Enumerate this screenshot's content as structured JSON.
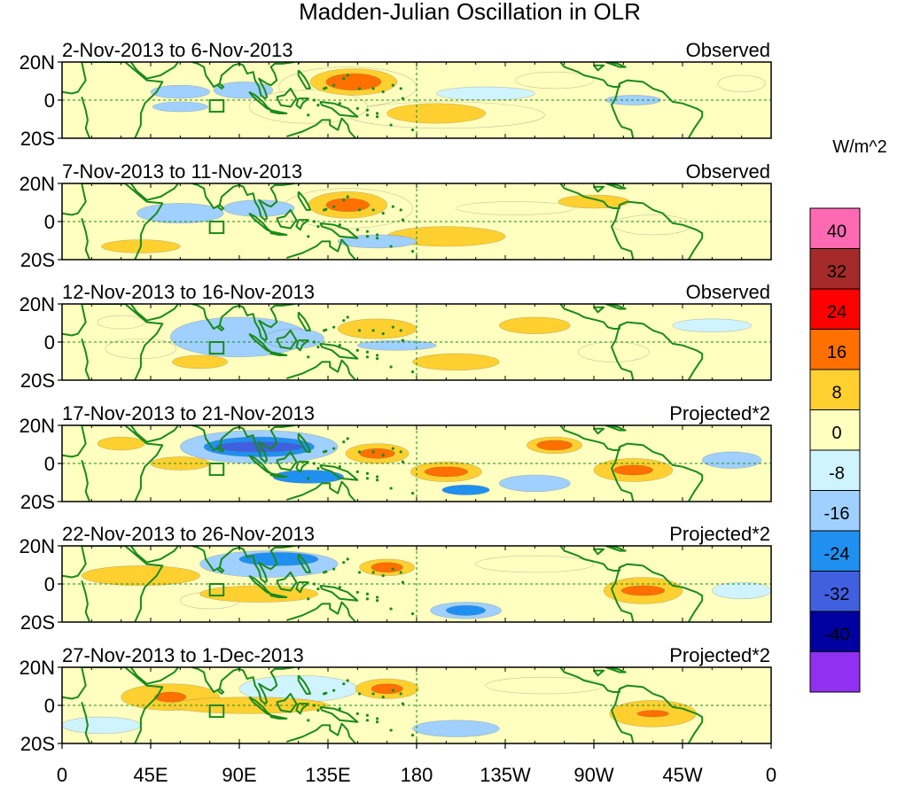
{
  "chart_data": {
    "type": "heatmap",
    "title": "Madden-Julian Oscillation in OLR",
    "colorbar": {
      "label": "W/m^2",
      "tick_labels": [
        "40",
        "32",
        "24",
        "16",
        "8",
        "0",
        "-8",
        "-16",
        "-24",
        "-32",
        "-40"
      ],
      "colors_top_to_bottom": [
        "#ff69b4",
        "#a52a2a",
        "#ff0000",
        "#ff7000",
        "#ffd030",
        "#ffffc0",
        "#d0f4ff",
        "#a0d0ff",
        "#2090f0",
        "#4060e0",
        "#0000a0",
        "#9030f0"
      ]
    },
    "x_tick_labels": [
      "0",
      "45E",
      "90E",
      "135E",
      "180",
      "135W",
      "90W",
      "45W",
      "0"
    ],
    "y_tick_labels": [
      "20N",
      "0",
      "20S"
    ],
    "panels": [
      {
        "period": "2-Nov-2013 to 6-Nov-2013",
        "kind": "Observed"
      },
      {
        "period": "7-Nov-2013 to 11-Nov-2013",
        "kind": "Observed"
      },
      {
        "period": "12-Nov-2013 to 16-Nov-2013",
        "kind": "Observed"
      },
      {
        "period": "17-Nov-2013 to 21-Nov-2013",
        "kind": "Projected*2"
      },
      {
        "period": "22-Nov-2013 to 26-Nov-2013",
        "kind": "Projected*2"
      },
      {
        "period": "27-Nov-2013 to 1-Dec-2013",
        "kind": "Projected*2"
      }
    ],
    "anomalies": [
      [
        {
          "lon": 148,
          "lat": 11,
          "rlon": 14,
          "rlat": 5,
          "v": 20
        },
        {
          "lon": 148,
          "lat": 11,
          "rlon": 22,
          "rlat": 8,
          "v": 10
        },
        {
          "lon": 145,
          "lat": 8,
          "rlon": 35,
          "rlat": 12,
          "v": 4
        },
        {
          "lon": 190,
          "lat": -8,
          "rlon": 25,
          "rlat": 6,
          "v": 10
        },
        {
          "lon": 195,
          "lat": -9,
          "rlon": 50,
          "rlat": 8,
          "v": 4
        },
        {
          "lon": 60,
          "lat": 5,
          "rlon": 15,
          "rlat": 4,
          "v": -10
        },
        {
          "lon": 92,
          "lat": 6,
          "rlon": 15,
          "rlat": 5,
          "v": -10
        },
        {
          "lon": 60,
          "lat": -4,
          "rlon": 14,
          "rlat": 3,
          "v": -10
        },
        {
          "lon": 290,
          "lat": 0,
          "rlon": 14,
          "rlat": 3,
          "v": -10
        },
        {
          "lon": 250,
          "lat": 12,
          "rlon": 20,
          "rlat": 5,
          "v": 4
        },
        {
          "lon": 125,
          "lat": -4,
          "rlon": 30,
          "rlat": 10,
          "v": 4
        },
        {
          "lon": 215,
          "lat": 4,
          "rlon": 25,
          "rlat": 4,
          "v": -4
        },
        {
          "lon": 345,
          "lat": 10,
          "rlon": 12,
          "rlat": 5,
          "v": 4
        }
      ],
      [
        {
          "lon": 145,
          "lat": 10,
          "rlon": 11,
          "rlat": 4,
          "v": 20
        },
        {
          "lon": 145,
          "lat": 10,
          "rlon": 20,
          "rlat": 8,
          "v": 10
        },
        {
          "lon": 145,
          "lat": 8,
          "rlon": 33,
          "rlat": 12,
          "v": 4
        },
        {
          "lon": 195,
          "lat": -9,
          "rlon": 30,
          "rlat": 6,
          "v": 10
        },
        {
          "lon": 270,
          "lat": 12,
          "rlon": 18,
          "rlat": 4,
          "v": 10
        },
        {
          "lon": 60,
          "lat": 5,
          "rlon": 22,
          "rlat": 6,
          "v": -10
        },
        {
          "lon": 100,
          "lat": 8,
          "rlon": 18,
          "rlat": 5,
          "v": -10
        },
        {
          "lon": 40,
          "lat": -15,
          "rlon": 20,
          "rlat": 4,
          "v": 10
        },
        {
          "lon": 300,
          "lat": -2,
          "rlon": 20,
          "rlat": 6,
          "v": 4
        },
        {
          "lon": 230,
          "lat": 8,
          "rlon": 30,
          "rlat": 4,
          "v": 4
        },
        {
          "lon": 160,
          "lat": -12,
          "rlon": 20,
          "rlat": 4,
          "v": -10
        }
      ],
      [
        {
          "lon": 160,
          "lat": 8,
          "rlon": 20,
          "rlat": 6,
          "v": 10
        },
        {
          "lon": 240,
          "lat": 10,
          "rlon": 18,
          "rlat": 5,
          "v": 10
        },
        {
          "lon": 90,
          "lat": 3,
          "rlon": 35,
          "rlat": 12,
          "v": -10
        },
        {
          "lon": 118,
          "lat": 2,
          "rlon": 15,
          "rlat": 6,
          "v": -10
        },
        {
          "lon": 40,
          "lat": -4,
          "rlon": 18,
          "rlat": 6,
          "v": 4
        },
        {
          "lon": 70,
          "lat": -12,
          "rlon": 14,
          "rlat": 4,
          "v": 10
        },
        {
          "lon": 30,
          "lat": 12,
          "rlon": 12,
          "rlat": 4,
          "v": 4
        },
        {
          "lon": 200,
          "lat": -12,
          "rlon": 22,
          "rlat": 5,
          "v": 10
        },
        {
          "lon": 280,
          "lat": -6,
          "rlon": 18,
          "rlat": 6,
          "v": 4
        },
        {
          "lon": 330,
          "lat": 10,
          "rlon": 20,
          "rlat": 4,
          "v": -4
        },
        {
          "lon": 170,
          "lat": -2,
          "rlon": 20,
          "rlat": 3,
          "v": -10
        }
      ],
      [
        {
          "lon": 160,
          "lat": 6,
          "rlon": 9,
          "rlat": 3,
          "v": 20
        },
        {
          "lon": 160,
          "lat": 6,
          "rlon": 16,
          "rlat": 6,
          "v": 10
        },
        {
          "lon": 195,
          "lat": -5,
          "rlon": 11,
          "rlat": 3,
          "v": 20
        },
        {
          "lon": 195,
          "lat": -5,
          "rlon": 18,
          "rlat": 6,
          "v": 10
        },
        {
          "lon": 290,
          "lat": -4,
          "rlon": 10,
          "rlat": 3,
          "v": 20
        },
        {
          "lon": 290,
          "lat": -4,
          "rlon": 20,
          "rlat": 7,
          "v": 10
        },
        {
          "lon": 250,
          "lat": 11,
          "rlon": 9,
          "rlat": 3,
          "v": 20
        },
        {
          "lon": 250,
          "lat": 11,
          "rlon": 14,
          "rlat": 5,
          "v": 10
        },
        {
          "lon": 100,
          "lat": 10,
          "rlon": 22,
          "rlat": 3,
          "v": -28
        },
        {
          "lon": 100,
          "lat": 10,
          "rlon": 28,
          "rlat": 6,
          "v": -20
        },
        {
          "lon": 100,
          "lat": 10,
          "rlon": 40,
          "rlat": 10,
          "v": -10
        },
        {
          "lon": 125,
          "lat": -8,
          "rlon": 18,
          "rlat": 4,
          "v": -20
        },
        {
          "lon": 205,
          "lat": -16,
          "rlon": 12,
          "rlat": 3,
          "v": -20
        },
        {
          "lon": 60,
          "lat": 0,
          "rlon": 15,
          "rlat": 4,
          "v": 10
        },
        {
          "lon": 30,
          "lat": 12,
          "rlon": 12,
          "rlat": 4,
          "v": 10
        },
        {
          "lon": 340,
          "lat": 2,
          "rlon": 15,
          "rlat": 5,
          "v": -10
        },
        {
          "lon": 240,
          "lat": -12,
          "rlon": 18,
          "rlat": 5,
          "v": -10
        }
      ],
      [
        {
          "lon": 165,
          "lat": 10,
          "rlon": 8,
          "rlat": 3,
          "v": 20
        },
        {
          "lon": 165,
          "lat": 10,
          "rlon": 14,
          "rlat": 5,
          "v": 10
        },
        {
          "lon": 295,
          "lat": -4,
          "rlon": 11,
          "rlat": 3,
          "v": 20
        },
        {
          "lon": 295,
          "lat": -4,
          "rlon": 20,
          "rlat": 8,
          "v": 10
        },
        {
          "lon": 110,
          "lat": 15,
          "rlon": 20,
          "rlat": 4,
          "v": -20
        },
        {
          "lon": 105,
          "lat": 12,
          "rlon": 35,
          "rlat": 8,
          "v": -10
        },
        {
          "lon": 205,
          "lat": -16,
          "rlon": 10,
          "rlat": 3,
          "v": -20
        },
        {
          "lon": 205,
          "lat": -16,
          "rlon": 18,
          "rlat": 5,
          "v": -10
        },
        {
          "lon": 40,
          "lat": 5,
          "rlon": 30,
          "rlat": 6,
          "v": 10
        },
        {
          "lon": 100,
          "lat": -6,
          "rlon": 30,
          "rlat": 5,
          "v": 10
        },
        {
          "lon": 75,
          "lat": -10,
          "rlon": 15,
          "rlat": 5,
          "v": 4
        },
        {
          "lon": 240,
          "lat": 12,
          "rlon": 30,
          "rlat": 5,
          "v": 4
        },
        {
          "lon": 345,
          "lat": -4,
          "rlon": 15,
          "rlat": 5,
          "v": -4
        }
      ],
      [
        {
          "lon": 165,
          "lat": 10,
          "rlon": 8,
          "rlat": 3,
          "v": 20
        },
        {
          "lon": 165,
          "lat": 10,
          "rlon": 16,
          "rlat": 6,
          "v": 10
        },
        {
          "lon": 55,
          "lat": 5,
          "rlon": 8,
          "rlat": 3,
          "v": 20
        },
        {
          "lon": 55,
          "lat": 5,
          "rlon": 25,
          "rlat": 8,
          "v": 10
        },
        {
          "lon": 300,
          "lat": -5,
          "rlon": 8,
          "rlat": 2,
          "v": 20
        },
        {
          "lon": 300,
          "lat": -5,
          "rlon": 22,
          "rlat": 8,
          "v": 10
        },
        {
          "lon": 95,
          "lat": 0,
          "rlon": 40,
          "rlat": 5,
          "v": 10
        },
        {
          "lon": 200,
          "lat": -14,
          "rlon": 22,
          "rlat": 5,
          "v": -10
        },
        {
          "lon": 120,
          "lat": 10,
          "rlon": 30,
          "rlat": 8,
          "v": -4
        },
        {
          "lon": 245,
          "lat": 12,
          "rlon": 30,
          "rlat": 5,
          "v": 4
        },
        {
          "lon": 20,
          "lat": -12,
          "rlon": 20,
          "rlat": 5,
          "v": -4
        }
      ]
    ]
  }
}
